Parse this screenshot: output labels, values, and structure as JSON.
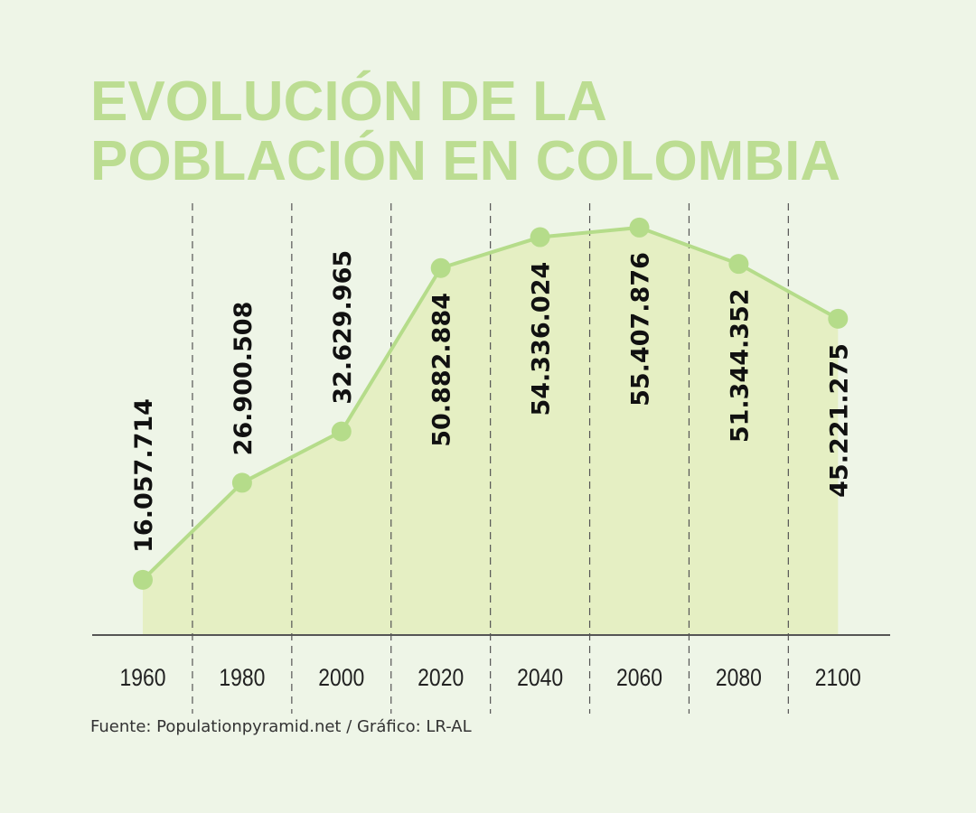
{
  "chart_data": {
    "type": "area",
    "title_lines": [
      "EVOLUCIÓN DE LA",
      "POBLACIÓN EN COLOMBIA"
    ],
    "categories": [
      "1960",
      "1980",
      "2000",
      "2020",
      "2040",
      "2060",
      "2080",
      "2100"
    ],
    "values": [
      16057714,
      26900508,
      32629965,
      50882884,
      54336024,
      55407876,
      51344352,
      45221275
    ],
    "data_labels": [
      "16.057.714",
      "26.900.508",
      "32.629.965",
      "50.882.884",
      "54.336.024",
      "55.407.876",
      "51.344.352",
      "45.221.275"
    ],
    "xlabel": "",
    "ylabel": "",
    "grid": "vertical dashed separators",
    "colors": {
      "background": "#eef5e7",
      "title": "#bcdd92",
      "line": "#b5dc8a",
      "fill": "#e5efc3",
      "axis": "#555555"
    }
  },
  "source": "Fuente: Populationpyramid.net / Gráfico: LR-AL"
}
